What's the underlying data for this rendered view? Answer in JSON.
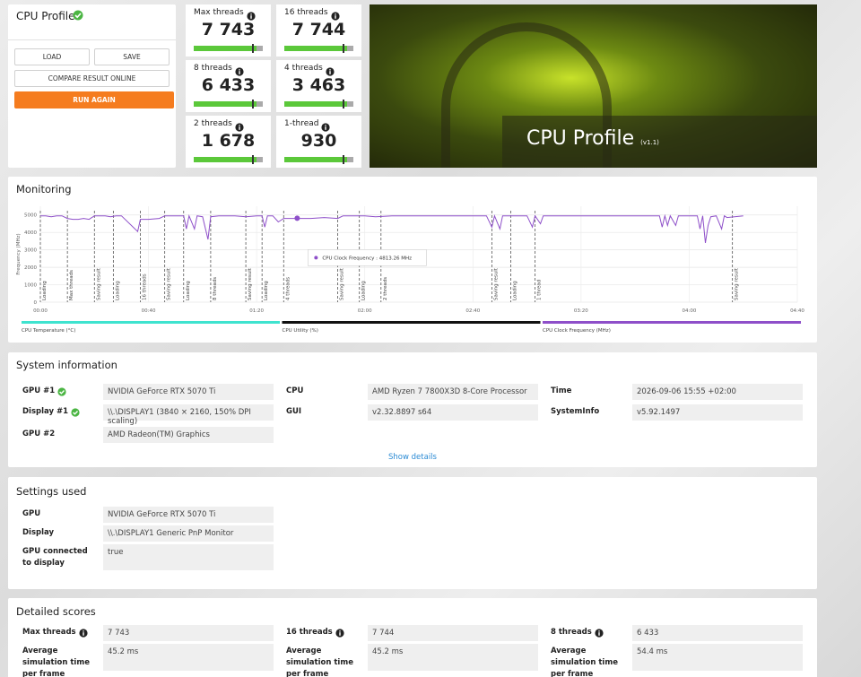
{
  "header": {
    "title": "CPU Profile",
    "buttons": {
      "load": "LOAD",
      "save": "SAVE",
      "compare": "COMPARE RESULT ONLINE",
      "run": "RUN AGAIN"
    }
  },
  "scores": [
    {
      "label": "Max threads",
      "value": "7 743"
    },
    {
      "label": "16 threads",
      "value": "7 744"
    },
    {
      "label": "8 threads",
      "value": "6 433"
    },
    {
      "label": "4 threads",
      "value": "3 463"
    },
    {
      "label": "2 threads",
      "value": "1 678"
    },
    {
      "label": "1-thread",
      "value": "930"
    }
  ],
  "banner": {
    "title": "CPU Profile",
    "version": "(v1.1)"
  },
  "monitoring": {
    "title": "Monitoring",
    "chart": {
      "type": "line",
      "y_label": "Frequency (MHz)",
      "color": "#8e4fc9",
      "x": [
        0,
        2,
        4,
        6,
        8,
        10,
        12,
        14,
        16,
        18,
        20,
        22,
        24,
        26,
        28,
        30,
        36,
        37,
        40,
        44,
        46,
        50,
        53,
        54,
        55,
        57,
        58,
        60,
        62,
        63,
        66,
        72,
        76,
        80,
        82,
        83,
        84,
        86,
        88,
        90,
        95,
        100,
        105,
        110,
        112,
        120,
        124,
        130,
        140,
        150,
        160,
        165,
        167,
        168,
        170,
        171,
        175,
        180,
        182,
        183,
        185,
        186,
        190,
        200,
        210,
        220,
        229,
        230,
        231,
        232,
        233,
        235,
        236,
        238,
        243,
        244,
        245,
        246,
        247,
        248,
        250,
        252,
        253,
        254,
        260
      ],
      "values": [
        4950,
        4950,
        4900,
        4950,
        4950,
        4800,
        4750,
        4750,
        4800,
        4750,
        4950,
        4950,
        4950,
        4900,
        4950,
        4950,
        4050,
        4750,
        4750,
        4800,
        4950,
        4950,
        4950,
        4200,
        4950,
        4200,
        4950,
        4900,
        3600,
        4900,
        4950,
        4950,
        4900,
        4950,
        4950,
        4300,
        4950,
        4950,
        4600,
        4800,
        4800,
        4800,
        4850,
        4800,
        4950,
        4950,
        4900,
        4950,
        4950,
        4950,
        4950,
        4950,
        4300,
        4950,
        4200,
        4950,
        4950,
        4950,
        4300,
        4950,
        4500,
        4950,
        4950,
        4950,
        4950,
        4950,
        4950,
        4300,
        4950,
        4400,
        4950,
        4400,
        4950,
        4950,
        4950,
        4200,
        4950,
        3400,
        4400,
        4900,
        4950,
        4200,
        4950,
        4850,
        4950
      ],
      "xlim": [
        0,
        280
      ],
      "xticks": [
        {
          "value": 0,
          "label": "00:00"
        },
        {
          "value": 40,
          "label": "00:40"
        },
        {
          "value": 80,
          "label": "01:20"
        },
        {
          "value": 120,
          "label": "02:00"
        },
        {
          "value": 160,
          "label": "02:40"
        },
        {
          "value": 200,
          "label": "03:20"
        },
        {
          "value": 240,
          "label": "04:00"
        },
        {
          "value": 280,
          "label": "04:40"
        }
      ],
      "ylim": [
        0,
        5500
      ],
      "yticks": [
        0,
        1000,
        2000,
        3000,
        4000,
        5000
      ],
      "grid": true,
      "markers": [
        {
          "x": 0,
          "label": "Loading"
        },
        {
          "x": 10,
          "label": "Max threads"
        },
        {
          "x": 20,
          "label": "Saving result"
        },
        {
          "x": 27,
          "label": "Loading"
        },
        {
          "x": 37,
          "label": "16 threads"
        },
        {
          "x": 46,
          "label": "Saving result"
        },
        {
          "x": 53,
          "label": "Loading"
        },
        {
          "x": 63,
          "label": "8 threads"
        },
        {
          "x": 76,
          "label": "Saving result"
        },
        {
          "x": 82,
          "label": "Loading"
        },
        {
          "x": 90,
          "label": "4 threads"
        },
        {
          "x": 110,
          "label": "Saving result"
        },
        {
          "x": 118,
          "label": "Loading"
        },
        {
          "x": 126,
          "label": "2 threads"
        },
        {
          "x": 167,
          "label": "Saving result"
        },
        {
          "x": 174,
          "label": "Loading"
        },
        {
          "x": 183,
          "label": "1 thread"
        },
        {
          "x": 256,
          "label": "Saving result"
        }
      ],
      "tooltip": {
        "text": "CPU Clock Frequency : 4813.26 MHz",
        "x": 95,
        "y": 4813.26
      },
      "legend": [
        {
          "name": "CPU Temperature (°C)",
          "color": "#3fe3cf"
        },
        {
          "name": "CPU Utility (%)",
          "color": "#111111"
        },
        {
          "name": "CPU Clock Frequency (MHz)",
          "color": "#8e4fc9"
        }
      ]
    }
  },
  "system_information": {
    "title": "System information",
    "show_details": "Show details",
    "columns": [
      [
        {
          "label": "GPU #1",
          "value": "NVIDIA GeForce RTX 5070 Ti",
          "verified": true
        },
        {
          "label": "Display #1",
          "value": "\\\\.\\DISPLAY1 (3840 × 2160, 150% DPI scaling)",
          "verified": true
        },
        {
          "label": "GPU #2",
          "value": "AMD Radeon(TM) Graphics",
          "verified": false
        }
      ],
      [
        {
          "label": "CPU",
          "value": "AMD Ryzen 7 7800X3D 8-Core Processor",
          "verified": false
        },
        {
          "label": "GUI",
          "value": "v2.32.8897 s64",
          "verified": false
        }
      ],
      [
        {
          "label": "Time",
          "value": "2026-09-06 15:55 +02:00",
          "verified": false
        },
        {
          "label": "SystemInfo",
          "value": "v5.92.1497",
          "verified": false
        }
      ]
    ]
  },
  "settings_used": {
    "title": "Settings used",
    "rows": [
      {
        "label": "GPU",
        "value": "NVIDIA GeForce RTX 5070 Ti"
      },
      {
        "label": "Display",
        "value": "\\\\.\\DISPLAY1 Generic PnP Monitor"
      },
      {
        "label": "GPU connected to display",
        "value": "true"
      }
    ]
  },
  "detailed_scores": {
    "title": "Detailed scores",
    "columns": [
      {
        "label": "Max threads",
        "value": "7 743",
        "sub_label": "Average simulation time per frame",
        "sub_value": "45.2 ms"
      },
      {
        "label": "16 threads",
        "value": "7 744",
        "sub_label": "Average simulation time per frame",
        "sub_value": "45.2 ms"
      },
      {
        "label": "8 threads",
        "value": "6 433",
        "sub_label": "Average simulation time per frame",
        "sub_value": "54.4 ms"
      }
    ]
  }
}
